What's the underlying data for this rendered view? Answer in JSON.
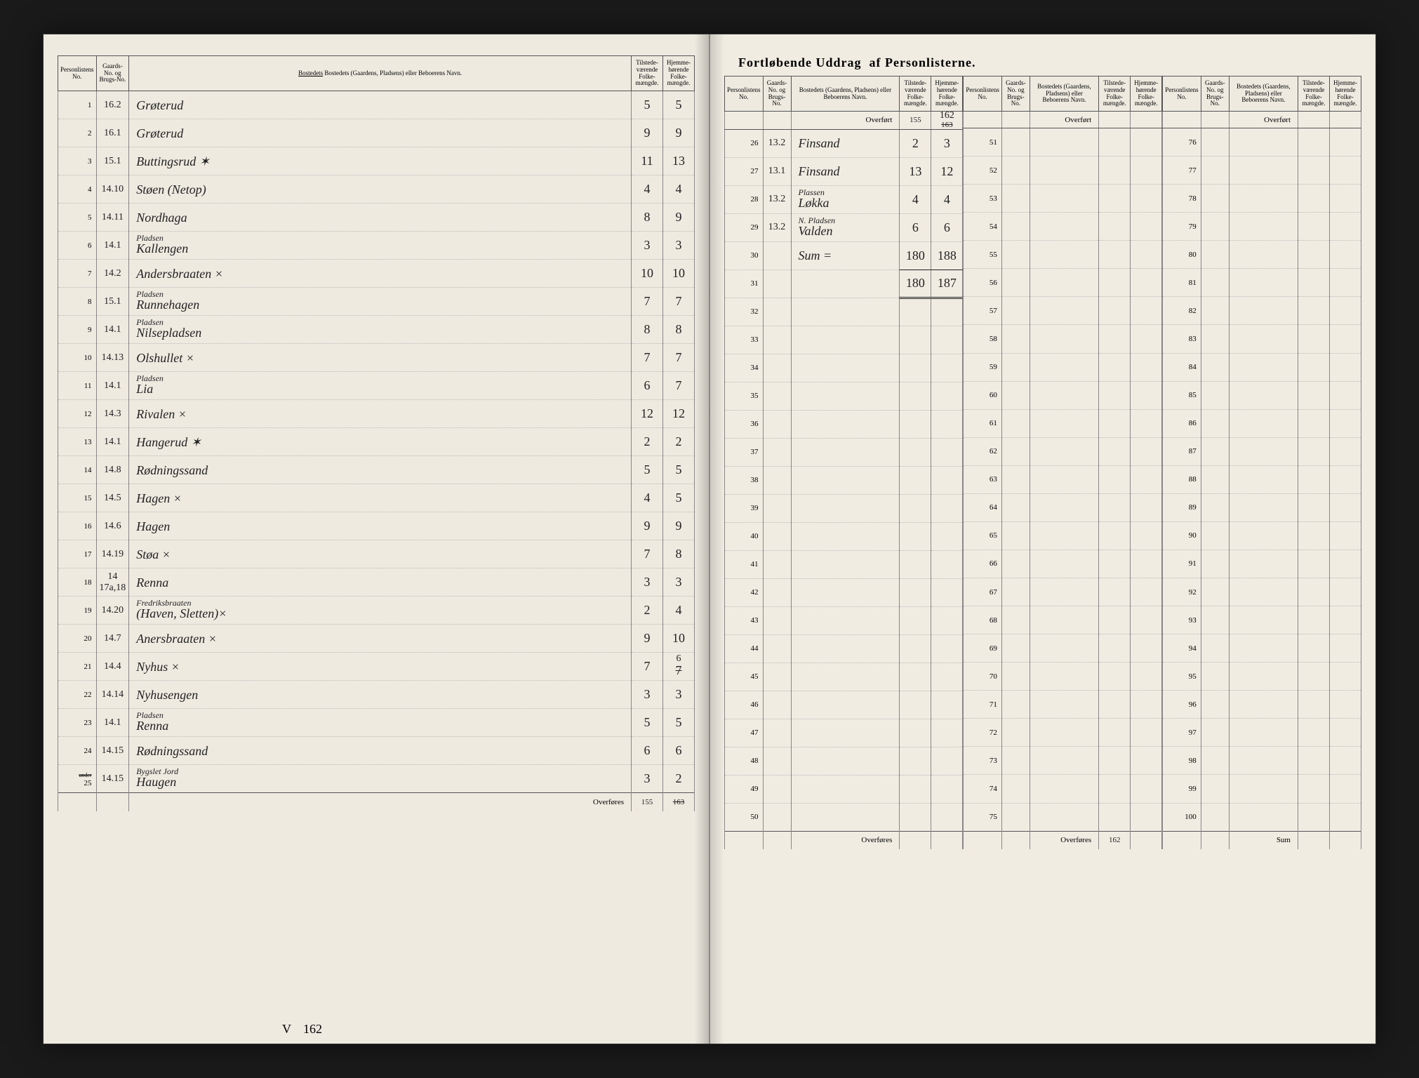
{
  "title_left": "Fortløbende Uddrag",
  "title_right": "af Personlisterne.",
  "headers": {
    "person_no": "Personlistens No.",
    "gaards_no": "Gaards-No. og Brugs-No.",
    "bosted": "Bostedets (Gaardens, Pladsens) eller Beboerens Navn.",
    "bosted_underline": "Bostedets",
    "tilstede": "Tilstede-værende Folke-mængde.",
    "hjemme": "Hjemme-hørende Folke-mængde.",
    "overfort": "Overført",
    "overfores": "Overføres",
    "sum": "Sum"
  },
  "overfort_right": {
    "til": "155",
    "hje_struck": "163",
    "hje_corr": "162"
  },
  "left_rows": [
    {
      "p": "1",
      "g": "16.2",
      "name": "Grøterud",
      "til": "5",
      "hje": "5"
    },
    {
      "p": "2",
      "g": "16.1",
      "name": "Grøterud",
      "til": "9",
      "hje": "9"
    },
    {
      "p": "3",
      "g": "15.1",
      "name": "Buttingsrud  ✶",
      "til": "11",
      "hje": "13"
    },
    {
      "p": "4",
      "g": "14.10",
      "name": "Støen (Netop)",
      "til": "4",
      "hje": "4"
    },
    {
      "p": "5",
      "g": "14.11",
      "name": "Nordhaga",
      "til": "8",
      "hje": "9"
    },
    {
      "p": "6",
      "g": "14.1",
      "name": "Kallengen",
      "sub": "Pladsen",
      "til": "3",
      "hje": "3"
    },
    {
      "p": "7",
      "g": "14.2",
      "name": "Andersbraaten ×",
      "til": "10",
      "hje": "10"
    },
    {
      "p": "8",
      "g": "15.1",
      "name": "Runnehagen",
      "sub": "Pladsen",
      "til": "7",
      "hje": "7"
    },
    {
      "p": "9",
      "g": "14.1",
      "name": "Nilsepladsen",
      "sub": "Pladsen",
      "til": "8",
      "hje": "8"
    },
    {
      "p": "10",
      "g": "14.13",
      "name": "Olshullet   ×",
      "til": "7",
      "hje": "7"
    },
    {
      "p": "11",
      "g": "14.1",
      "name": "Lia",
      "sub": "Pladsen",
      "til": "6",
      "hje": "7"
    },
    {
      "p": "12",
      "g": "14.3",
      "name": "Rivalen    ×",
      "til": "12",
      "hje": "12"
    },
    {
      "p": "13",
      "g": "14.1",
      "name": "Hangerud   ✶",
      "til": "2",
      "hje": "2"
    },
    {
      "p": "14",
      "g": "14.8",
      "name": "Rødningssand",
      "til": "5",
      "hje": "5"
    },
    {
      "p": "15",
      "g": "14.5",
      "name": "Hagen     ×",
      "til": "4",
      "hje": "5"
    },
    {
      "p": "16",
      "g": "14.6",
      "name": "Hagen",
      "til": "9",
      "hje": "9"
    },
    {
      "p": "17",
      "g": "14.19",
      "name": "Støa      ×",
      "til": "7",
      "hje": "8"
    },
    {
      "p": "18",
      "g": "14 17a,18",
      "name": "Renna",
      "til": "3",
      "hje": "3"
    },
    {
      "p": "19",
      "g": "14.20",
      "name": "(Haven, Sletten)×",
      "sub": "Fredriksbraaten",
      "til": "2",
      "hje": "4"
    },
    {
      "p": "20",
      "g": "14.7",
      "name": "Anersbraaten ×",
      "til": "9",
      "hje": "10"
    },
    {
      "p": "21",
      "g": "14.4",
      "name": "Nyhus     ×",
      "til": "7",
      "hje": "7",
      "hje_corr": "6"
    },
    {
      "p": "22",
      "g": "14.14",
      "name": "Nyhusengen",
      "til": "3",
      "hje": "3"
    },
    {
      "p": "23",
      "g": "14.1",
      "name": "Renna",
      "sub": "Pladsen",
      "til": "5",
      "hje": "5"
    },
    {
      "p": "24",
      "g": "14.15",
      "name": "Rødningssand",
      "til": "6",
      "hje": "6"
    },
    {
      "p": "25",
      "g": "14.15",
      "name": "Haugen",
      "sub": "Bygslet Jord",
      "til": "3",
      "hje": "2",
      "p_sub": "under"
    }
  ],
  "left_footer": {
    "til": "155",
    "hje_struck": "163",
    "note_v": "V",
    "note_162": "162"
  },
  "right_rows_a": [
    {
      "p": "26",
      "g": "13.2",
      "name": "Finsand",
      "til": "2",
      "hje": "3"
    },
    {
      "p": "27",
      "g": "13.1",
      "name": "Finsand",
      "til": "13",
      "hje": "12"
    },
    {
      "p": "28",
      "g": "13.2",
      "name": "Løkka",
      "sub": "Plassen",
      "til": "4",
      "hje": "4"
    },
    {
      "p": "29",
      "g": "13.2",
      "name": "Valden",
      "sub": "N. Pladsen",
      "til": "6",
      "hje": "6"
    },
    {
      "p": "30",
      "g": "",
      "name": "Sum =",
      "til": "180",
      "hje": "188",
      "sum": true
    },
    {
      "p": "31",
      "g": "",
      "name": "",
      "til": "180",
      "hje": "187",
      "dbl": true
    },
    {
      "p": "32"
    },
    {
      "p": "33"
    },
    {
      "p": "34"
    },
    {
      "p": "35"
    },
    {
      "p": "36"
    },
    {
      "p": "37"
    },
    {
      "p": "38"
    },
    {
      "p": "39"
    },
    {
      "p": "40"
    },
    {
      "p": "41"
    },
    {
      "p": "42"
    },
    {
      "p": "43"
    },
    {
      "p": "44"
    },
    {
      "p": "45"
    },
    {
      "p": "46"
    },
    {
      "p": "47"
    },
    {
      "p": "48"
    },
    {
      "p": "49"
    },
    {
      "p": "50"
    }
  ],
  "right_rows_b_start": 51,
  "right_rows_b_end": 75,
  "right_rows_c_start": 76,
  "right_rows_c_end": 100,
  "right_footer_b": {
    "note": "162"
  }
}
